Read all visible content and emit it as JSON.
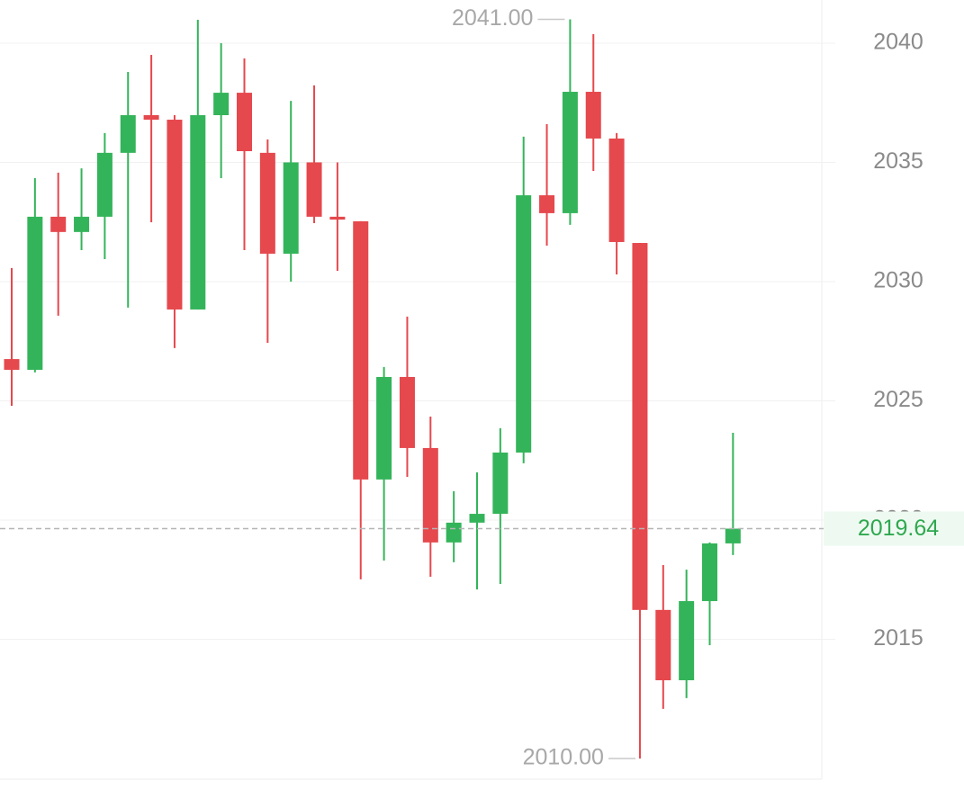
{
  "chart_data": {
    "type": "candlestick",
    "categories": [
      null,
      null,
      null,
      null,
      null,
      null,
      null,
      null,
      null,
      null,
      null,
      null,
      null,
      null,
      null,
      null,
      null,
      null,
      null,
      null,
      null,
      null,
      null,
      null,
      null,
      null,
      null,
      null,
      null,
      null,
      null,
      null
    ],
    "open": [
      2026.75,
      2026.3,
      2032.72,
      2032.08,
      2032.72,
      2035.4,
      2036.98,
      2036.79,
      2028.83,
      2036.98,
      2037.92,
      2035.4,
      2031.17,
      2035.0,
      2032.72,
      2032.53,
      2021.7,
      2026.0,
      2023.02,
      2019.06,
      2019.89,
      2020.26,
      2022.83,
      2033.62,
      2032.87,
      2037.96,
      2036.0,
      2031.62,
      2016.23,
      2013.28,
      2016.6,
      2019.02
    ],
    "high": [
      2030.57,
      2034.34,
      2034.57,
      2034.75,
      2036.23,
      2038.79,
      2039.51,
      2036.98,
      2040.98,
      2040.0,
      2039.36,
      2035.96,
      2037.58,
      2038.23,
      2035.0,
      2032.53,
      2026.42,
      2028.53,
      2024.34,
      2021.21,
      2022.0,
      2023.85,
      2036.08,
      2036.6,
      2041.0,
      2040.38,
      2036.23,
      2031.62,
      2018.11,
      2017.92,
      2019.06,
      2023.66
    ],
    "low": [
      2024.79,
      2026.19,
      2028.57,
      2031.32,
      2030.94,
      2028.91,
      2032.49,
      2027.21,
      2028.83,
      2034.34,
      2031.32,
      2027.43,
      2030.0,
      2032.45,
      2030.45,
      2017.51,
      2018.3,
      2021.81,
      2017.62,
      2018.23,
      2017.09,
      2017.32,
      2022.38,
      2031.51,
      2032.38,
      2034.64,
      2030.3,
      2010.0,
      2012.08,
      2012.53,
      2014.75,
      2018.53
    ],
    "close": [
      2026.3,
      2032.72,
      2032.08,
      2032.72,
      2035.4,
      2036.98,
      2036.79,
      2028.83,
      2036.98,
      2037.92,
      2035.47,
      2031.17,
      2035.0,
      2032.72,
      2032.6,
      2021.7,
      2026.0,
      2023.02,
      2019.06,
      2019.89,
      2020.26,
      2022.83,
      2033.62,
      2032.87,
      2037.96,
      2036.0,
      2031.66,
      2016.23,
      2013.28,
      2016.6,
      2019.02,
      2019.64
    ],
    "up_color": "#34b45a",
    "down_color": "#e5484d",
    "ylim": [
      2009.13,
      2041.81
    ],
    "yticks": [
      2015,
      2020,
      2025,
      2030,
      2035,
      2040
    ],
    "grid": true,
    "current_price": 2019.64,
    "max_label": {
      "value": 2041,
      "label": "2041.00"
    },
    "min_label": {
      "value": 2010,
      "label": "2010.00"
    }
  }
}
